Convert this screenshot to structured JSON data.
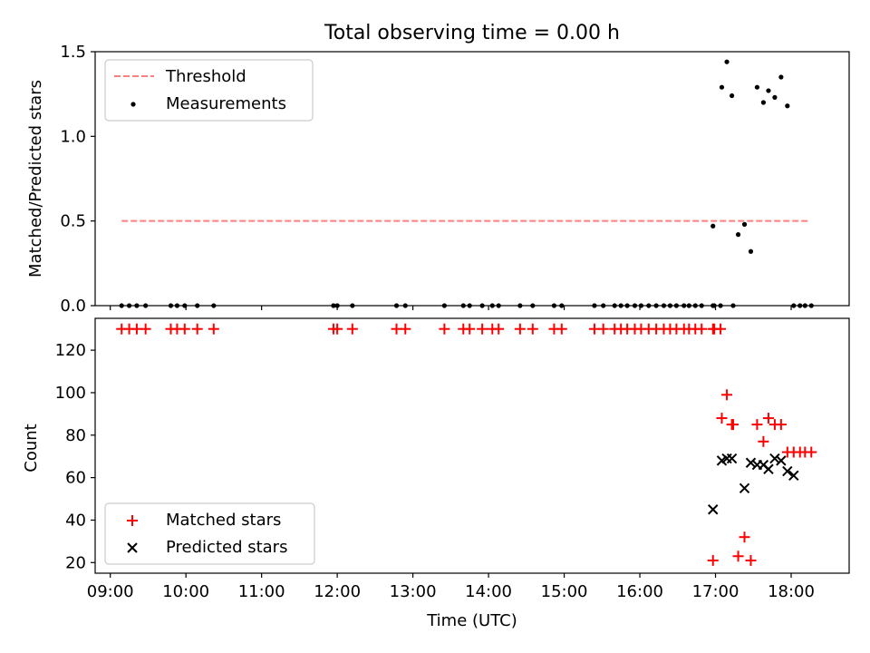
{
  "chart_data": [
    {
      "type": "scatter",
      "title": "Total observing time = 0.00 h",
      "xlabel": "",
      "ylabel": "Matched/Predicted stars",
      "ylim": [
        0,
        1.5
      ],
      "yticks": [
        "0.0",
        "0.5",
        "1.0",
        "1.5"
      ],
      "legend_position": "top-left",
      "threshold": {
        "name": "Threshold",
        "value": 0.5,
        "x_range": [
          "09:09",
          "18:15"
        ],
        "color": "#ff7f7f",
        "style": "dashed"
      },
      "series": [
        {
          "name": "Measurements",
          "color": "#000000",
          "marker": "dot",
          "x": [
            "09:09",
            "09:15",
            "09:21",
            "09:28",
            "09:48",
            "09:53",
            "09:59",
            "10:09",
            "10:22",
            "11:57",
            "12:00",
            "12:12",
            "12:47",
            "12:54",
            "13:25",
            "13:40",
            "13:45",
            "13:55",
            "14:03",
            "14:08",
            "14:25",
            "14:35",
            "14:52",
            "14:58",
            "15:24",
            "15:31",
            "15:40",
            "15:45",
            "15:50",
            "15:56",
            "16:01",
            "16:07",
            "16:13",
            "16:19",
            "16:24",
            "16:29",
            "16:35",
            "16:39",
            "16:44",
            "16:49",
            "16:58",
            "16:59",
            "17:04",
            "16:58",
            "17:05",
            "17:09",
            "17:13",
            "17:14",
            "17:18",
            "17:23",
            "17:28",
            "17:33",
            "17:38",
            "17:42",
            "17:47",
            "17:52",
            "17:57",
            "18:02",
            "18:07",
            "18:11",
            "18:16"
          ],
          "y": [
            0,
            0,
            0,
            0,
            0,
            0,
            0,
            0,
            0,
            0,
            0,
            0,
            0,
            0,
            0,
            0,
            0,
            0,
            0,
            0,
            0,
            0,
            0,
            0,
            0,
            0,
            0,
            0,
            0,
            0,
            0,
            0,
            0,
            0,
            0,
            0,
            0,
            0,
            0,
            0,
            0,
            0,
            0,
            0.47,
            1.29,
            1.44,
            1.24,
            0,
            0.42,
            0.48,
            0.32,
            1.29,
            1.2,
            1.27,
            1.23,
            1.35,
            1.18,
            0,
            0,
            0,
            0
          ]
        }
      ]
    },
    {
      "type": "scatter",
      "title": "",
      "xlabel": "Time (UTC)",
      "ylabel": "Count",
      "ylim": [
        15,
        135
      ],
      "yticks": [
        "20",
        "40",
        "60",
        "80",
        "100",
        "120"
      ],
      "xlim": [
        "08:48",
        "18:46"
      ],
      "xticks": [
        "09:00",
        "10:00",
        "11:00",
        "12:00",
        "13:00",
        "14:00",
        "15:00",
        "16:00",
        "17:00",
        "18:00"
      ],
      "legend_position": "bottom-left",
      "series": [
        {
          "name": "Matched stars",
          "color": "#ff0000",
          "marker": "plus",
          "x": [
            "09:09",
            "09:15",
            "09:21",
            "09:28",
            "09:48",
            "09:53",
            "09:59",
            "10:09",
            "10:22",
            "11:57",
            "12:00",
            "12:12",
            "12:47",
            "12:54",
            "13:25",
            "13:40",
            "13:45",
            "13:55",
            "14:03",
            "14:08",
            "14:25",
            "14:35",
            "14:52",
            "14:58",
            "15:24",
            "15:31",
            "15:40",
            "15:45",
            "15:50",
            "15:56",
            "16:01",
            "16:07",
            "16:13",
            "16:19",
            "16:24",
            "16:29",
            "16:35",
            "16:39",
            "16:44",
            "16:49",
            "16:58",
            "16:59",
            "17:04",
            "16:58",
            "17:05",
            "17:09",
            "17:13",
            "17:14",
            "17:18",
            "17:23",
            "17:28",
            "17:33",
            "17:38",
            "17:42",
            "17:47",
            "17:52",
            "17:57",
            "18:02",
            "18:07",
            "18:11",
            "18:16"
          ],
          "y": [
            130,
            130,
            130,
            130,
            130,
            130,
            130,
            130,
            130,
            130,
            130,
            130,
            130,
            130,
            130,
            130,
            130,
            130,
            130,
            130,
            130,
            130,
            130,
            130,
            130,
            130,
            130,
            130,
            130,
            130,
            130,
            130,
            130,
            130,
            130,
            130,
            130,
            130,
            130,
            130,
            130,
            130,
            130,
            21,
            88,
            99,
            85,
            85,
            23,
            32,
            21,
            85,
            77,
            88,
            85,
            85,
            72,
            72,
            72,
            72,
            72
          ]
        },
        {
          "name": "Predicted stars",
          "color": "#000000",
          "marker": "x",
          "x": [
            "16:58",
            "17:05",
            "17:09",
            "17:13",
            "17:23",
            "17:28",
            "17:33",
            "17:38",
            "17:42",
            "17:47",
            "17:52",
            "17:57",
            "18:02"
          ],
          "y": [
            45,
            68,
            69,
            69,
            55,
            67,
            66,
            66,
            64,
            69,
            68,
            63,
            61
          ]
        }
      ]
    }
  ]
}
